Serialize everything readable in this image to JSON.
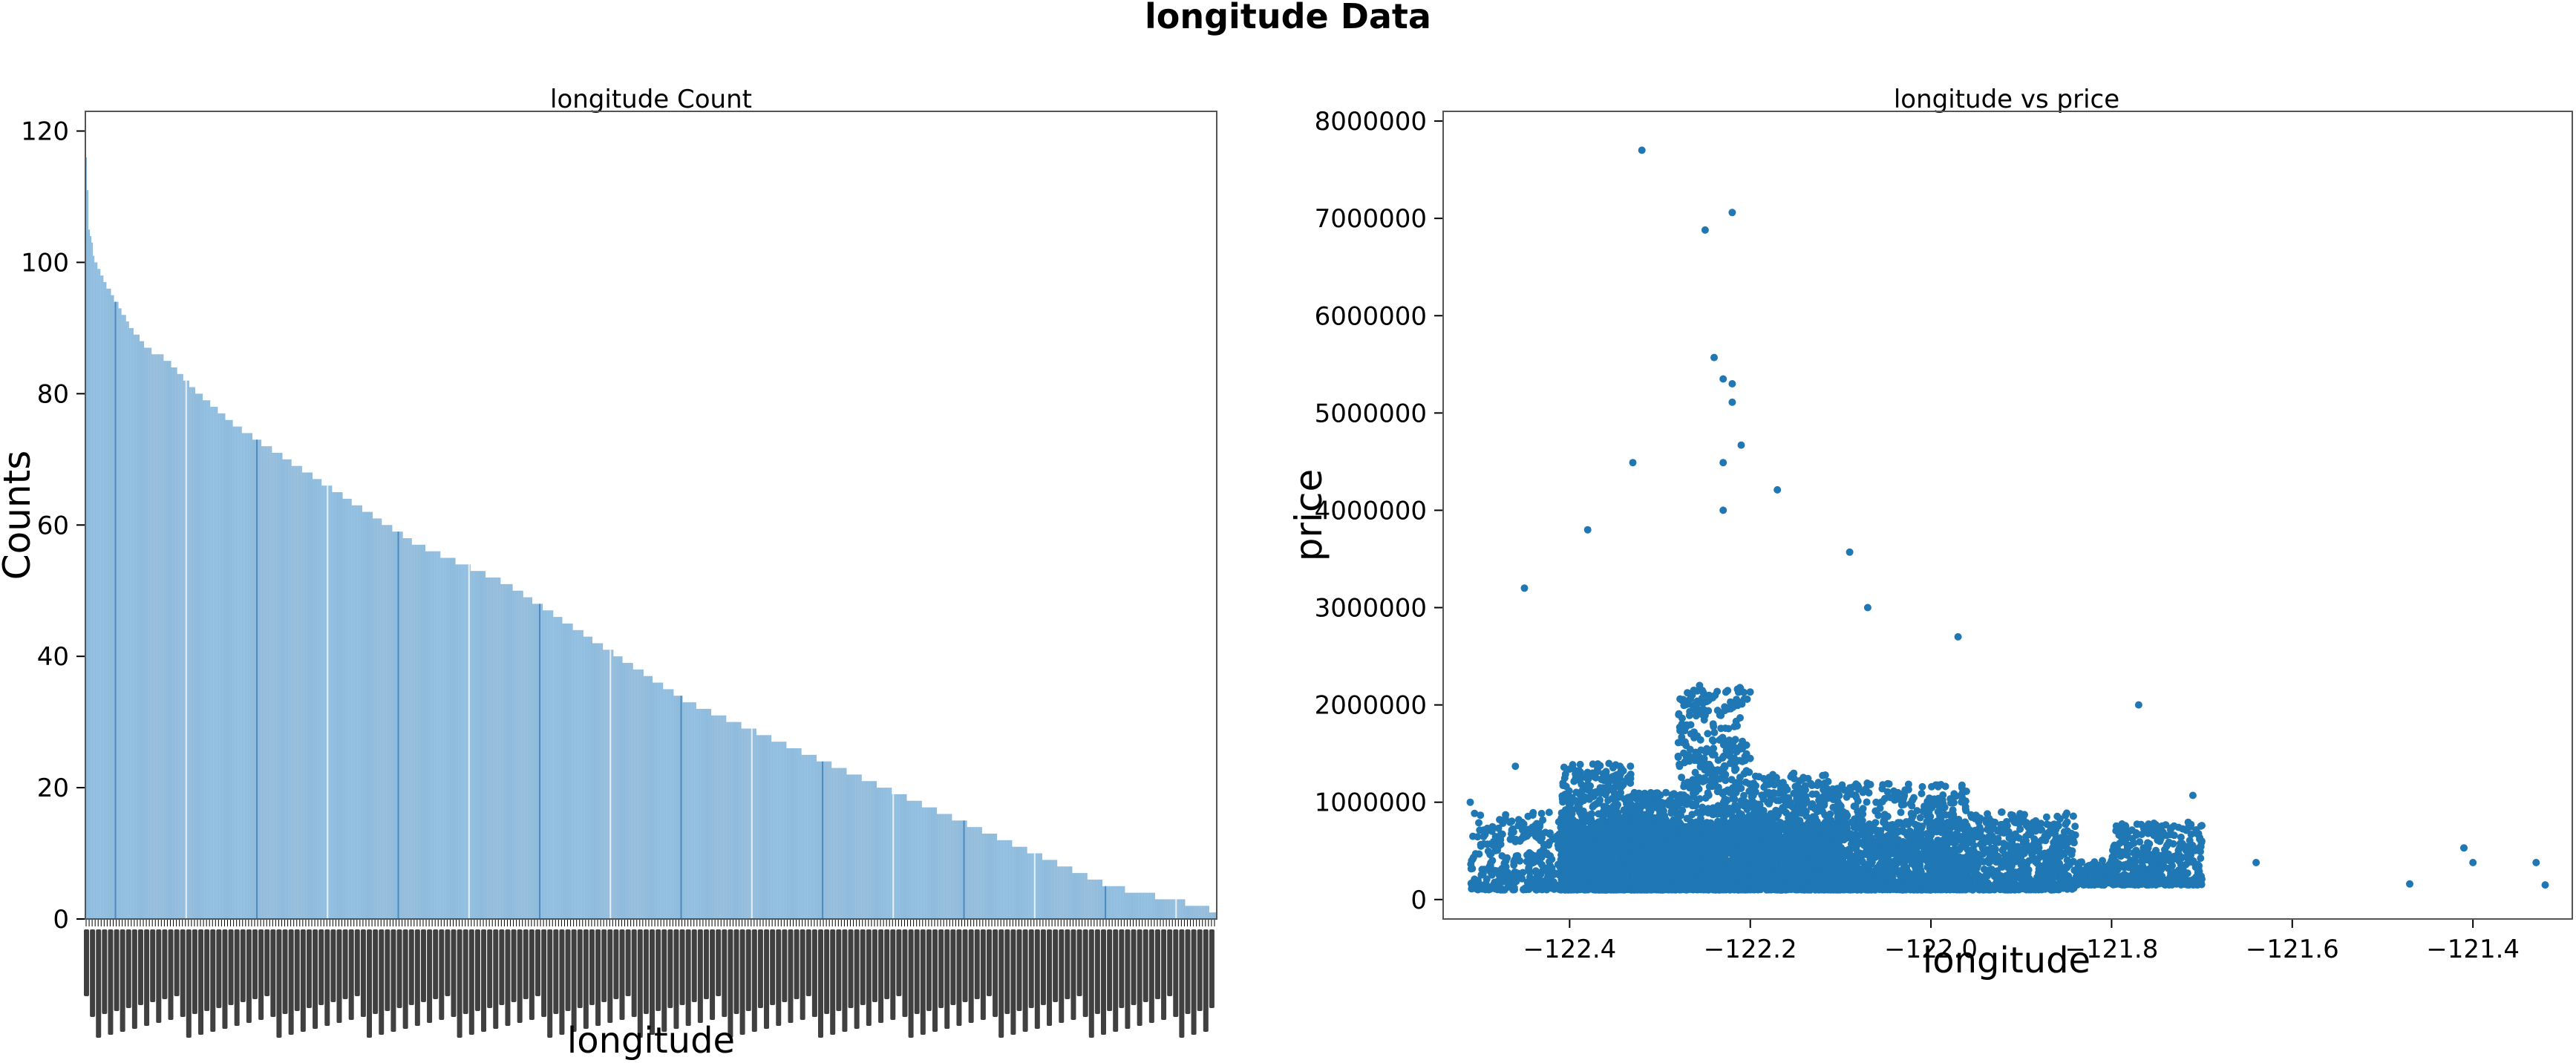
{
  "figure": {
    "suptitle": "longitude Data"
  },
  "colors": {
    "bar_fill": "#8fbbdd",
    "bar_edge": "#ffffff",
    "scatter_point": "#1f77b4",
    "axes_edge": "#555555"
  },
  "chart_data": [
    {
      "type": "bar",
      "title": "longitude Count",
      "xlabel": "longitude",
      "ylabel": "Counts",
      "ylim": [
        0,
        123
      ],
      "yticks": [
        0,
        20,
        40,
        60,
        80,
        100,
        120
      ],
      "ytick_labels": [
        "0",
        "20",
        "40",
        "60",
        "80",
        "100",
        "120"
      ],
      "bar_count": 752,
      "xtick_labels_note": "tick labels are overlapping and illegible",
      "sorted_descending_values_profile": [
        [
          0,
          116
        ],
        [
          2,
          105
        ],
        [
          6,
          100
        ],
        [
          12,
          97
        ],
        [
          20,
          94
        ],
        [
          30,
          90
        ],
        [
          40,
          87
        ],
        [
          55,
          85
        ],
        [
          70,
          81
        ],
        [
          85,
          78
        ],
        [
          100,
          75
        ],
        [
          120,
          72
        ],
        [
          140,
          69
        ],
        [
          160,
          66
        ],
        [
          180,
          63
        ],
        [
          200,
          60
        ],
        [
          220,
          57
        ],
        [
          240,
          55
        ],
        [
          260,
          53
        ],
        [
          280,
          51
        ],
        [
          300,
          48
        ],
        [
          320,
          45
        ],
        [
          340,
          42
        ],
        [
          360,
          39
        ],
        [
          380,
          36
        ],
        [
          400,
          33
        ],
        [
          420,
          31
        ],
        [
          440,
          29
        ],
        [
          460,
          27
        ],
        [
          480,
          25
        ],
        [
          500,
          23
        ],
        [
          520,
          21
        ],
        [
          540,
          19
        ],
        [
          560,
          17
        ],
        [
          580,
          15
        ],
        [
          600,
          13
        ],
        [
          620,
          11
        ],
        [
          640,
          9
        ],
        [
          660,
          7
        ],
        [
          680,
          5
        ],
        [
          700,
          4
        ],
        [
          720,
          3
        ],
        [
          740,
          2
        ],
        [
          752,
          1
        ]
      ],
      "grid": false,
      "legend": "none"
    },
    {
      "type": "scatter",
      "title": "longitude vs price",
      "xlabel": "longitude",
      "ylabel": "price",
      "xlim": [
        -122.54,
        -121.29
      ],
      "ylim": [
        -200000,
        8100000
      ],
      "xticks": [
        -122.4,
        -122.2,
        -122.0,
        -121.8,
        -121.6,
        -121.4
      ],
      "xtick_labels": [
        "−122.4",
        "−122.2",
        "−122.0",
        "−121.8",
        "−121.6",
        "−121.4"
      ],
      "yticks": [
        0,
        1000000,
        2000000,
        3000000,
        4000000,
        5000000,
        6000000,
        7000000,
        8000000
      ],
      "ytick_labels": [
        "0",
        "1000000",
        "2000000",
        "3000000",
        "4000000",
        "5000000",
        "6000000",
        "7000000",
        "8000000"
      ],
      "point_count_approx": 21613,
      "notable_points": [
        {
          "x": -122.32,
          "y": 7700000
        },
        {
          "x": -122.22,
          "y": 7060000
        },
        {
          "x": -122.25,
          "y": 6880000
        },
        {
          "x": -122.24,
          "y": 5570000
        },
        {
          "x": -122.22,
          "y": 5300000
        },
        {
          "x": -122.22,
          "y": 5110000
        },
        {
          "x": -122.23,
          "y": 5350000
        },
        {
          "x": -122.21,
          "y": 4670000
        },
        {
          "x": -122.33,
          "y": 4490000
        },
        {
          "x": -122.23,
          "y": 4490000
        },
        {
          "x": -122.17,
          "y": 4210000
        },
        {
          "x": -122.23,
          "y": 4000000
        },
        {
          "x": -122.38,
          "y": 3800000
        },
        {
          "x": -122.09,
          "y": 3570000
        },
        {
          "x": -122.07,
          "y": 3000000
        },
        {
          "x": -122.45,
          "y": 3200000
        },
        {
          "x": -121.97,
          "y": 2700000
        },
        {
          "x": -121.77,
          "y": 2000000
        },
        {
          "x": -121.71,
          "y": 1070000
        },
        {
          "x": -121.64,
          "y": 380000
        },
        {
          "x": -121.47,
          "y": 160000
        },
        {
          "x": -121.41,
          "y": 530000
        },
        {
          "x": -121.4,
          "y": 380000
        },
        {
          "x": -121.33,
          "y": 380000
        },
        {
          "x": -121.32,
          "y": 150000
        },
        {
          "x": -122.51,
          "y": 1000000
        },
        {
          "x": -122.46,
          "y": 1370000
        }
      ],
      "clusters": [
        {
          "x_range": [
            -122.51,
            -122.4
          ],
          "y_range": [
            100000,
            900000
          ],
          "density": 0.25
        },
        {
          "x_range": [
            -122.41,
            -122.33
          ],
          "y_range": [
            100000,
            1400000
          ],
          "density": 1.0
        },
        {
          "x_range": [
            -122.33,
            -122.28
          ],
          "y_range": [
            100000,
            1100000
          ],
          "density": 0.9
        },
        {
          "x_range": [
            -122.28,
            -122.2
          ],
          "y_range": [
            100000,
            2200000
          ],
          "density": 1.0
        },
        {
          "x_range": [
            -122.2,
            -122.1
          ],
          "y_range": [
            100000,
            1300000
          ],
          "density": 0.95
        },
        {
          "x_range": [
            -122.1,
            -121.96
          ],
          "y_range": [
            100000,
            1200000
          ],
          "density": 0.85
        },
        {
          "x_range": [
            -121.96,
            -121.84
          ],
          "y_range": [
            100000,
            900000
          ],
          "density": 0.45
        },
        {
          "x_range": [
            -121.84,
            -121.8
          ],
          "y_range": [
            150000,
            400000
          ],
          "density": 0.1
        },
        {
          "x_range": [
            -121.8,
            -121.7
          ],
          "y_range": [
            150000,
            800000
          ],
          "density": 0.3
        }
      ],
      "grid": false,
      "legend": "none"
    }
  ]
}
